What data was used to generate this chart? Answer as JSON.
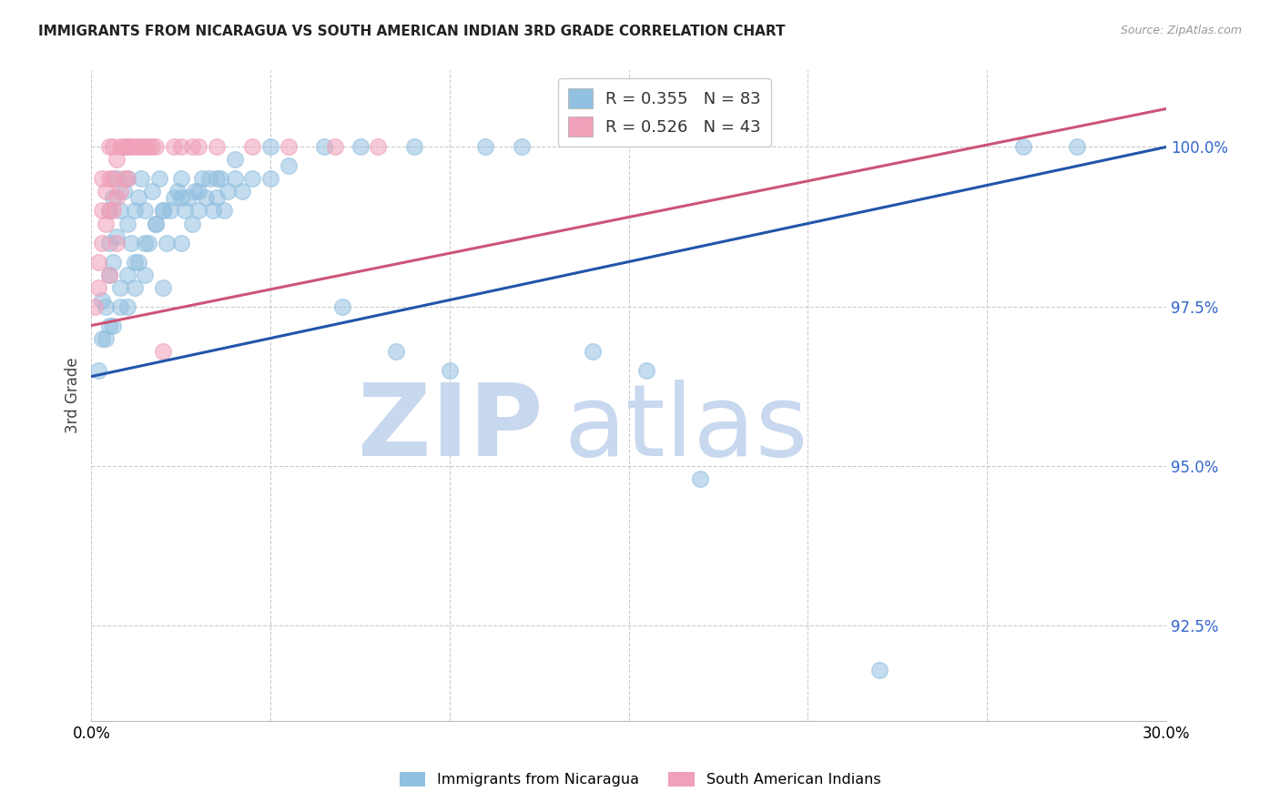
{
  "title": "IMMIGRANTS FROM NICARAGUA VS SOUTH AMERICAN INDIAN 3RD GRADE CORRELATION CHART",
  "source": "Source: ZipAtlas.com",
  "ylabel": "3rd Grade",
  "xlim": [
    0.0,
    30.0
  ],
  "ylim": [
    91.0,
    101.2
  ],
  "yticks": [
    92.5,
    95.0,
    97.5,
    100.0
  ],
  "ytick_labels": [
    "92.5%",
    "95.0%",
    "97.5%",
    "100.0%"
  ],
  "legend_label1": "Immigrants from Nicaragua",
  "legend_label2": "South American Indians",
  "R1": 0.355,
  "N1": 83,
  "R2": 0.526,
  "N2": 43,
  "color_blue": "#92c0e0",
  "color_pink": "#f0a0b8",
  "color_blue_line": "#2255aa",
  "color_pink_line": "#cc5577",
  "color_blue_text": "#3366cc",
  "color_pink_text": "#cc4466",
  "blue_line_x0": 0.0,
  "blue_line_y0": 96.4,
  "blue_line_x1": 30.0,
  "blue_line_y1": 100.0,
  "pink_line_x0": 0.0,
  "pink_line_y0": 97.2,
  "pink_line_x1": 30.0,
  "pink_line_y1": 100.6,
  "blue_scatter_x": [
    0.2,
    0.3,
    0.3,
    0.4,
    0.5,
    0.5,
    0.5,
    0.5,
    0.6,
    0.6,
    0.7,
    0.7,
    0.8,
    0.8,
    0.9,
    1.0,
    1.0,
    1.0,
    1.1,
    1.2,
    1.2,
    1.3,
    1.3,
    1.4,
    1.5,
    1.5,
    1.6,
    1.7,
    1.8,
    1.9,
    2.0,
    2.0,
    2.1,
    2.2,
    2.3,
    2.4,
    2.5,
    2.5,
    2.6,
    2.7,
    2.8,
    2.9,
    3.0,
    3.1,
    3.2,
    3.3,
    3.4,
    3.5,
    3.6,
    3.7,
    3.8,
    4.0,
    4.2,
    4.5,
    5.0,
    5.5,
    6.5,
    7.0,
    8.5,
    9.0,
    10.0,
    11.0,
    12.0,
    14.0,
    15.5,
    17.0,
    22.0,
    26.0,
    27.5,
    0.4,
    0.6,
    0.8,
    1.0,
    1.2,
    1.5,
    1.8,
    2.0,
    2.5,
    3.0,
    3.5,
    4.0,
    5.0,
    7.5
  ],
  "blue_scatter_y": [
    96.5,
    97.0,
    97.6,
    97.5,
    97.2,
    98.0,
    98.5,
    99.0,
    98.2,
    99.2,
    98.6,
    99.5,
    97.8,
    99.0,
    99.3,
    97.5,
    98.8,
    99.5,
    98.5,
    97.8,
    99.0,
    98.2,
    99.2,
    99.5,
    98.0,
    99.0,
    98.5,
    99.3,
    98.8,
    99.5,
    97.8,
    99.0,
    98.5,
    99.0,
    99.2,
    99.3,
    98.5,
    99.5,
    99.0,
    99.2,
    98.8,
    99.3,
    99.0,
    99.5,
    99.2,
    99.5,
    99.0,
    99.2,
    99.5,
    99.0,
    99.3,
    99.5,
    99.3,
    99.5,
    99.5,
    99.7,
    100.0,
    97.5,
    96.8,
    100.0,
    96.5,
    100.0,
    100.0,
    96.8,
    96.5,
    94.8,
    91.8,
    100.0,
    100.0,
    97.0,
    97.2,
    97.5,
    98.0,
    98.2,
    98.5,
    98.8,
    99.0,
    99.2,
    99.3,
    99.5,
    99.8,
    100.0,
    100.0
  ],
  "pink_scatter_x": [
    0.1,
    0.2,
    0.2,
    0.3,
    0.3,
    0.3,
    0.4,
    0.4,
    0.5,
    0.5,
    0.5,
    0.6,
    0.6,
    0.6,
    0.7,
    0.7,
    0.8,
    0.8,
    0.9,
    0.9,
    1.0,
    1.0,
    1.0,
    1.1,
    1.2,
    1.3,
    1.4,
    1.5,
    1.6,
    1.7,
    1.8,
    2.0,
    2.3,
    2.5,
    2.8,
    3.0,
    3.5,
    4.5,
    5.5,
    6.8,
    8.0,
    0.5,
    0.7
  ],
  "pink_scatter_y": [
    97.5,
    97.8,
    98.2,
    98.5,
    99.0,
    99.5,
    98.8,
    99.3,
    99.0,
    99.5,
    100.0,
    99.0,
    99.5,
    100.0,
    99.2,
    99.8,
    99.3,
    100.0,
    99.5,
    100.0,
    99.5,
    100.0,
    100.0,
    100.0,
    100.0,
    100.0,
    100.0,
    100.0,
    100.0,
    100.0,
    100.0,
    96.8,
    100.0,
    100.0,
    100.0,
    100.0,
    100.0,
    100.0,
    100.0,
    100.0,
    100.0,
    98.0,
    98.5
  ]
}
